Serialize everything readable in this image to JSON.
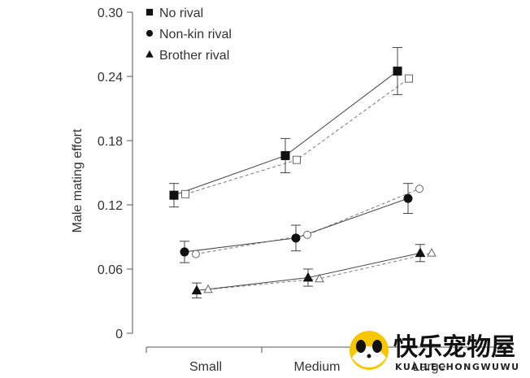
{
  "chart_data": {
    "type": "line",
    "title": "",
    "xlabel": "",
    "ylabel": "Male mating effort",
    "categories": [
      "Small",
      "Medium",
      "Large"
    ],
    "ylim": [
      0,
      0.3
    ],
    "yticks": [
      0,
      0.06,
      0.12,
      0.18,
      0.24,
      0.3
    ],
    "ytick_labels": [
      "0",
      "0.06",
      "0.12",
      "0.18",
      "0.24",
      "0.30"
    ],
    "legend_position": "top-left",
    "grid": false,
    "series": [
      {
        "name": "No rival",
        "marker": "square",
        "filled": {
          "values": [
            0.129,
            0.166,
            0.245
          ],
          "errors": [
            0.011,
            0.016,
            0.022
          ]
        },
        "open": {
          "values": [
            0.13,
            0.162,
            0.238
          ]
        }
      },
      {
        "name": "Non-kin rival",
        "marker": "circle",
        "filled": {
          "values": [
            0.076,
            0.089,
            0.126
          ],
          "errors": [
            0.01,
            0.012,
            0.014
          ]
        },
        "open": {
          "values": [
            0.074,
            0.092,
            0.135
          ]
        }
      },
      {
        "name": "Brother rival",
        "marker": "triangle",
        "filled": {
          "values": [
            0.04,
            0.052,
            0.075
          ],
          "errors": [
            0.007,
            0.008,
            0.008
          ]
        },
        "open": {
          "values": [
            0.041,
            0.051,
            0.075
          ]
        }
      }
    ]
  },
  "watermark": {
    "title": "快乐宠物屋",
    "subtitle": "KUAILECHONGWUWU"
  }
}
